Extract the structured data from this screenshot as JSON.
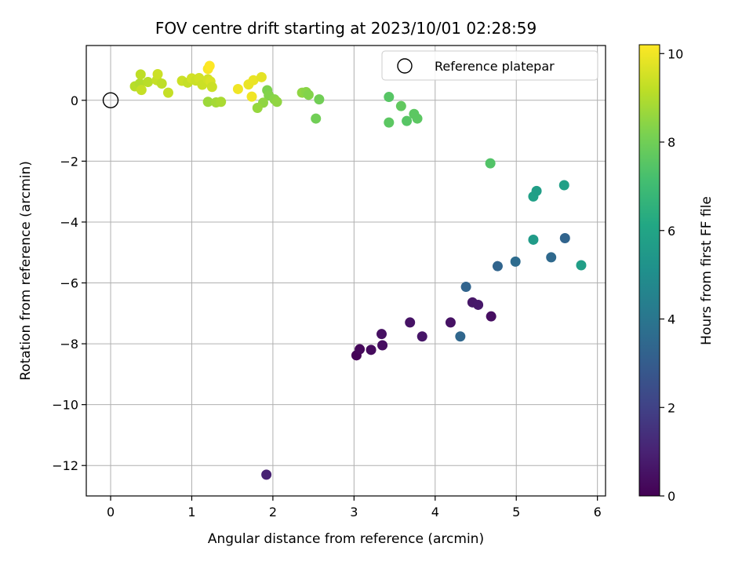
{
  "chart_data": {
    "type": "scatter",
    "title": "FOV centre drift starting at 2023/10/01 02:28:59",
    "xlabel": "Angular distance from reference (arcmin)",
    "ylabel": "Rotation from reference (arcmin)",
    "xlim": [
      -0.3,
      6.1
    ],
    "ylim": [
      -13.0,
      1.8
    ],
    "xticks": [
      0,
      1,
      2,
      3,
      4,
      5,
      6
    ],
    "yticks": [
      0,
      -2,
      -4,
      -6,
      -8,
      -10,
      -12
    ],
    "grid": true,
    "legend": {
      "label": "Reference platepar",
      "placement": "top-right"
    },
    "reference_point": {
      "x": 0,
      "y": 0
    },
    "colorbar": {
      "label": "Hours from first FF file",
      "min": 0,
      "max": 10.2,
      "ticks": [
        0,
        2,
        4,
        6,
        8,
        10
      ],
      "colormap": "viridis"
    },
    "points": [
      {
        "x": 3.03,
        "y": -8.38,
        "c": 0.1
      },
      {
        "x": 3.07,
        "y": -8.18,
        "c": 0.2
      },
      {
        "x": 3.21,
        "y": -8.2,
        "c": 0.3
      },
      {
        "x": 3.35,
        "y": -8.05,
        "c": 0.4
      },
      {
        "x": 3.34,
        "y": -7.68,
        "c": 0.45
      },
      {
        "x": 3.69,
        "y": -7.3,
        "c": 0.55
      },
      {
        "x": 3.84,
        "y": -7.76,
        "c": 0.6
      },
      {
        "x": 4.19,
        "y": -7.3,
        "c": 0.5
      },
      {
        "x": 4.46,
        "y": -6.64,
        "c": 0.65
      },
      {
        "x": 4.53,
        "y": -6.72,
        "c": 0.7
      },
      {
        "x": 4.69,
        "y": -7.1,
        "c": 0.4
      },
      {
        "x": 1.92,
        "y": -12.3,
        "c": 1.0
      },
      {
        "x": 4.31,
        "y": -7.76,
        "c": 3.4
      },
      {
        "x": 4.38,
        "y": -6.13,
        "c": 3.3
      },
      {
        "x": 4.77,
        "y": -5.45,
        "c": 3.3
      },
      {
        "x": 4.99,
        "y": -5.3,
        "c": 3.6
      },
      {
        "x": 5.43,
        "y": -5.16,
        "c": 3.5
      },
      {
        "x": 5.6,
        "y": -4.53,
        "c": 3.3
      },
      {
        "x": 5.21,
        "y": -4.58,
        "c": 5.6
      },
      {
        "x": 5.8,
        "y": -5.42,
        "c": 5.7
      },
      {
        "x": 5.21,
        "y": -3.16,
        "c": 5.8
      },
      {
        "x": 5.25,
        "y": -2.98,
        "c": 5.7
      },
      {
        "x": 5.59,
        "y": -2.79,
        "c": 5.8
      },
      {
        "x": 4.68,
        "y": -2.07,
        "c": 7.4
      },
      {
        "x": 3.43,
        "y": 0.11,
        "c": 7.5
      },
      {
        "x": 3.58,
        "y": -0.19,
        "c": 7.7
      },
      {
        "x": 3.74,
        "y": -0.45,
        "c": 7.6
      },
      {
        "x": 3.78,
        "y": -0.6,
        "c": 7.6
      },
      {
        "x": 3.65,
        "y": -0.68,
        "c": 7.5
      },
      {
        "x": 3.43,
        "y": -0.73,
        "c": 7.6
      },
      {
        "x": 2.57,
        "y": 0.03,
        "c": 8.0
      },
      {
        "x": 2.53,
        "y": -0.6,
        "c": 8.0
      },
      {
        "x": 2.36,
        "y": 0.25,
        "c": 8.5
      },
      {
        "x": 2.41,
        "y": 0.27,
        "c": 8.4
      },
      {
        "x": 2.44,
        "y": 0.18,
        "c": 8.3
      },
      {
        "x": 1.93,
        "y": 0.33,
        "c": 8.2
      },
      {
        "x": 1.95,
        "y": 0.16,
        "c": 8.3
      },
      {
        "x": 2.02,
        "y": 0.03,
        "c": 8.4
      },
      {
        "x": 2.05,
        "y": -0.05,
        "c": 8.5
      },
      {
        "x": 1.88,
        "y": -0.08,
        "c": 8.5
      },
      {
        "x": 1.81,
        "y": -0.25,
        "c": 8.6
      },
      {
        "x": 1.2,
        "y": -0.05,
        "c": 8.7
      },
      {
        "x": 1.3,
        "y": -0.07,
        "c": 8.8
      },
      {
        "x": 1.36,
        "y": -0.05,
        "c": 8.9
      },
      {
        "x": 0.3,
        "y": 0.46,
        "c": 9.1
      },
      {
        "x": 0.36,
        "y": 0.55,
        "c": 9.0
      },
      {
        "x": 0.37,
        "y": 0.85,
        "c": 9.2
      },
      {
        "x": 0.38,
        "y": 0.34,
        "c": 9.3
      },
      {
        "x": 0.46,
        "y": 0.6,
        "c": 9.1
      },
      {
        "x": 0.57,
        "y": 0.66,
        "c": 9.3
      },
      {
        "x": 0.58,
        "y": 0.86,
        "c": 9.4
      },
      {
        "x": 0.63,
        "y": 0.55,
        "c": 9.2
      },
      {
        "x": 0.71,
        "y": 0.25,
        "c": 9.3
      },
      {
        "x": 0.88,
        "y": 0.64,
        "c": 9.4
      },
      {
        "x": 0.95,
        "y": 0.58,
        "c": 9.3
      },
      {
        "x": 1.0,
        "y": 0.72,
        "c": 9.5
      },
      {
        "x": 1.05,
        "y": 0.65,
        "c": 9.4
      },
      {
        "x": 1.09,
        "y": 0.73,
        "c": 9.5
      },
      {
        "x": 1.13,
        "y": 0.51,
        "c": 9.4
      },
      {
        "x": 1.2,
        "y": 0.69,
        "c": 9.5
      },
      {
        "x": 1.23,
        "y": 0.62,
        "c": 9.6
      },
      {
        "x": 1.25,
        "y": 0.44,
        "c": 9.4
      },
      {
        "x": 1.2,
        "y": 1.03,
        "c": 10.1
      },
      {
        "x": 1.22,
        "y": 1.13,
        "c": 10.2
      },
      {
        "x": 1.57,
        "y": 0.37,
        "c": 10.0
      },
      {
        "x": 1.7,
        "y": 0.52,
        "c": 9.9
      },
      {
        "x": 1.76,
        "y": 0.66,
        "c": 9.9
      },
      {
        "x": 1.74,
        "y": 0.12,
        "c": 10.0
      },
      {
        "x": 1.86,
        "y": 0.76,
        "c": 9.8
      }
    ]
  }
}
